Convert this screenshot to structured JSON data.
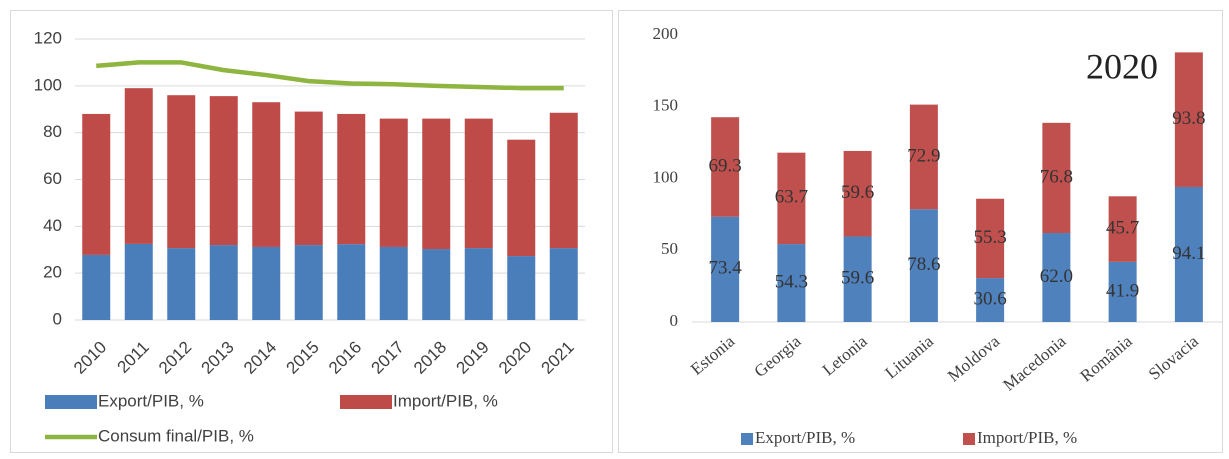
{
  "chart_data": [
    {
      "type": "bar",
      "stacked": true,
      "categories": [
        "2010",
        "2011",
        "2012",
        "2013",
        "2014",
        "2015",
        "2016",
        "2017",
        "2018",
        "2019",
        "2020",
        "2021"
      ],
      "series": [
        {
          "name": "Export/PIB, %",
          "color": "#4a7ebb",
          "values": [
            27.8,
            32.5,
            30.7,
            32,
            31.2,
            32,
            32.4,
            31.2,
            30.3,
            30.7,
            27.3,
            30.7
          ]
        },
        {
          "name": "Import/PIB, %",
          "color": "#be4b48",
          "values": [
            60.2,
            66.5,
            65.3,
            63.6,
            61.8,
            57,
            55.6,
            54.8,
            55.7,
            55.3,
            49.7,
            57.8
          ]
        },
        {
          "name": "Consum final/PIB, %",
          "color": "#8db53f",
          "type": "line",
          "values": [
            108.5,
            110,
            110,
            106.7,
            104.6,
            102,
            101,
            100.7,
            100,
            99.5,
            99,
            99
          ]
        }
      ],
      "ylim": [
        0,
        120
      ],
      "yticks": [
        0,
        20,
        40,
        60,
        80,
        100,
        120
      ],
      "grid": true
    },
    {
      "type": "bar",
      "stacked": true,
      "annotation": "2020",
      "categories": [
        "Estonia",
        "Georgia",
        "Letonia",
        "Lituania",
        "Moldova",
        "Macedonia",
        "România",
        "Slovacia"
      ],
      "series": [
        {
          "name": "Export/PIB, %",
          "color": "#4f81bd",
          "values": [
            73.4,
            54.3,
            59.6,
            78.6,
            30.6,
            62,
            41.9,
            94.1
          ],
          "value_labels": [
            "73.4",
            "54.3",
            "59.6",
            "78.6",
            "30.6",
            "62.0",
            "41.9",
            "94.1"
          ]
        },
        {
          "name": "Import/PIB, %",
          "color": "#c0504d",
          "values": [
            69.3,
            63.7,
            59.6,
            72.9,
            55.3,
            76.8,
            45.7,
            93.8
          ],
          "value_labels": [
            "69.3",
            "63.7",
            "59.6",
            "72.9",
            "55.3",
            "76.8",
            "45.7",
            "93.8"
          ]
        }
      ],
      "ylim": [
        0,
        200
      ],
      "yticks": [
        0,
        50,
        100,
        150,
        200
      ],
      "grid": false
    }
  ]
}
